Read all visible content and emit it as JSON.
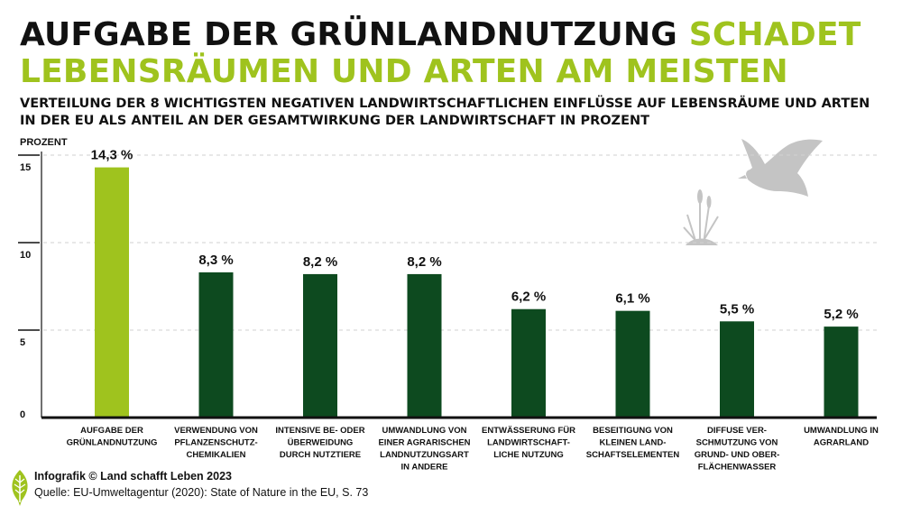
{
  "header": {
    "title_part1": "AUFGABE DER GRÜNLANDNUTZUNG ",
    "title_part2": "SCHADET LEBENSRÄUMEN UND ARTEN AM MEISTEN",
    "subtitle": "VERTEILUNG DER 8 WICHTIGSTEN NEGATIVEN LANDWIRTSCHAFTLICHEN EINFLÜSSE AUF LEBENSRÄUME UND ARTEN IN DER EU ALS ANTEIL AN DER GESAMTWIRKUNG DER LANDWIRTSCHAFT IN PROZENT"
  },
  "footer": {
    "credit": "Infografik © Land schafft Leben 2023",
    "source": "Quelle: EU-Umweltagentur (2020): State of Nature in the EU, S. 73"
  },
  "colors": {
    "highlight": "#9fc31e",
    "bar": "#0d4a1f",
    "decoration": "#c4c4c4"
  },
  "icons": [
    "bird-icon",
    "reed-plant-icon",
    "leaf-logo-icon"
  ],
  "chart_data": {
    "type": "bar",
    "ylabel": "PROZENT",
    "ylim": [
      0,
      15
    ],
    "yticks": [
      0,
      5,
      10,
      15
    ],
    "grid": true,
    "categories": [
      [
        "AUFGABE DER",
        "GRÜNLANDNUTZUNG"
      ],
      [
        "VERWENDUNG VON",
        "PFLANZENSCHUTZ-",
        "CHEMIKALIEN"
      ],
      [
        "INTENSIVE BE- ODER",
        "ÜBERWEIDUNG",
        "DURCH NUTZTIERE"
      ],
      [
        "UMWANDLUNG VON",
        "EINER AGRARISCHEN",
        "LANDNUTZUNGSART",
        "IN ANDERE"
      ],
      [
        "ENTWÄSSERUNG FÜR",
        "LANDWIRTSCHAFT-",
        "LICHE NUTZUNG"
      ],
      [
        "BESEITIGUNG VON",
        "KLEINEN LAND-",
        "SCHAFTSELEMENTEN"
      ],
      [
        "DIFFUSE VER-",
        "SCHMUTZUNG VON",
        "GRUND- UND OBER-",
        "FLÄCHENWASSER"
      ],
      [
        "UMWANDLUNG IN",
        "AGRARLAND"
      ]
    ],
    "values": [
      14.3,
      8.3,
      8.2,
      8.2,
      6.2,
      6.1,
      5.5,
      5.2
    ],
    "value_labels": [
      "14,3 %",
      "8,3 %",
      "8,2 %",
      "8,2 %",
      "6,2 %",
      "6,1 %",
      "5,5 %",
      "5,2 %"
    ],
    "highlight_index": 0
  }
}
